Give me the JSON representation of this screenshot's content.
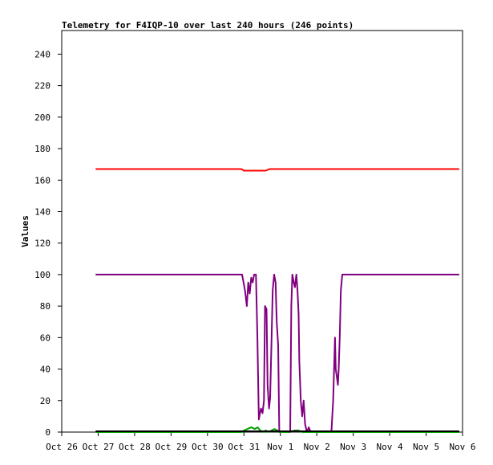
{
  "chart_data": {
    "type": "line",
    "title": "Telemetry for F4IQP-10 over last 240 hours (246 points)",
    "xlabel": "",
    "ylabel": "Values",
    "ylim": [
      0,
      255
    ],
    "xlim": [
      0,
      11
    ],
    "y_ticks": [
      0,
      20,
      40,
      60,
      80,
      100,
      120,
      140,
      160,
      180,
      200,
      220,
      240
    ],
    "x_ticks": [
      {
        "label": "Oct 26",
        "value": 0
      },
      {
        "label": "Oct 27",
        "value": 1
      },
      {
        "label": "Oct 28",
        "value": 2
      },
      {
        "label": "Oct 29",
        "value": 3
      },
      {
        "label": "Oct 30",
        "value": 4
      },
      {
        "label": "Oct 31",
        "value": 5
      },
      {
        "label": "Nov 1",
        "value": 6
      },
      {
        "label": "Nov 2",
        "value": 7
      },
      {
        "label": "Nov 3",
        "value": 8
      },
      {
        "label": "Nov 4",
        "value": 9
      },
      {
        "label": "Nov 5",
        "value": 10
      },
      {
        "label": "Nov 6",
        "value": 11
      }
    ],
    "grid": false,
    "series": [
      {
        "color": "#ff0000",
        "x": [
          0.93,
          2.0,
          3.0,
          4.0,
          4.93,
          5.0,
          5.2,
          5.6,
          5.7,
          6.0,
          7.0,
          8.0,
          9.0,
          10.0,
          10.91
        ],
        "y": [
          167,
          167,
          167,
          167,
          167,
          166,
          166,
          166,
          167,
          167,
          167,
          167,
          167,
          167,
          167
        ]
      },
      {
        "color": "#800080",
        "x": [
          0.93,
          2.0,
          3.0,
          4.0,
          4.95,
          5.03,
          5.08,
          5.12,
          5.16,
          5.2,
          5.24,
          5.28,
          5.33,
          5.37,
          5.41,
          5.44,
          5.47,
          5.51,
          5.55,
          5.58,
          5.62,
          5.65,
          5.69,
          5.72,
          5.76,
          5.79,
          5.83,
          5.87,
          5.9,
          5.94,
          5.97,
          6.01,
          6.05,
          6.08,
          6.12,
          6.16,
          6.2,
          6.23,
          6.27,
          6.3,
          6.33,
          6.37,
          6.4,
          6.44,
          6.47,
          6.5,
          6.52,
          6.56,
          6.6,
          6.64,
          6.68,
          6.73,
          6.78,
          6.83,
          6.88,
          6.93,
          7.0,
          7.1,
          7.2,
          7.3,
          7.4,
          7.45,
          7.5,
          7.52,
          7.55,
          7.58,
          7.6,
          7.63,
          7.66,
          7.7,
          8.0,
          9.0,
          10.0,
          10.91
        ],
        "y": [
          100,
          100,
          100,
          100,
          100,
          90,
          80,
          95,
          88,
          98,
          95,
          100,
          100,
          60,
          8,
          12,
          15,
          12,
          20,
          80,
          78,
          30,
          15,
          22,
          60,
          90,
          100,
          95,
          70,
          55,
          0,
          0,
          0,
          0,
          0,
          0,
          0,
          0,
          0,
          80,
          100,
          95,
          92,
          100,
          90,
          75,
          45,
          20,
          10,
          20,
          5,
          0,
          3,
          0,
          0,
          0,
          0,
          0,
          0,
          0,
          0,
          20,
          60,
          40,
          35,
          30,
          40,
          60,
          90,
          100,
          100,
          100,
          100,
          100
        ]
      },
      {
        "color": "#00a000",
        "x": [
          0.93,
          2.0,
          3.0,
          4.0,
          4.95,
          5.0,
          5.1,
          5.2,
          5.3,
          5.38,
          5.45,
          5.52,
          5.6,
          5.68,
          5.76,
          5.84,
          5.92,
          6.0,
          6.2,
          6.4,
          6.5,
          6.6,
          7.0,
          8.0,
          9.0,
          10.0,
          10.91
        ],
        "y": [
          0,
          0,
          0,
          0,
          0,
          1,
          2,
          3,
          2,
          3,
          1,
          0,
          1,
          0,
          1,
          2,
          1,
          0,
          0,
          1,
          1,
          0,
          0,
          0,
          0,
          0,
          0
        ]
      },
      {
        "color": "#000000",
        "x": [
          0.93,
          10.91
        ],
        "y": [
          0.5,
          0.5
        ]
      }
    ]
  }
}
